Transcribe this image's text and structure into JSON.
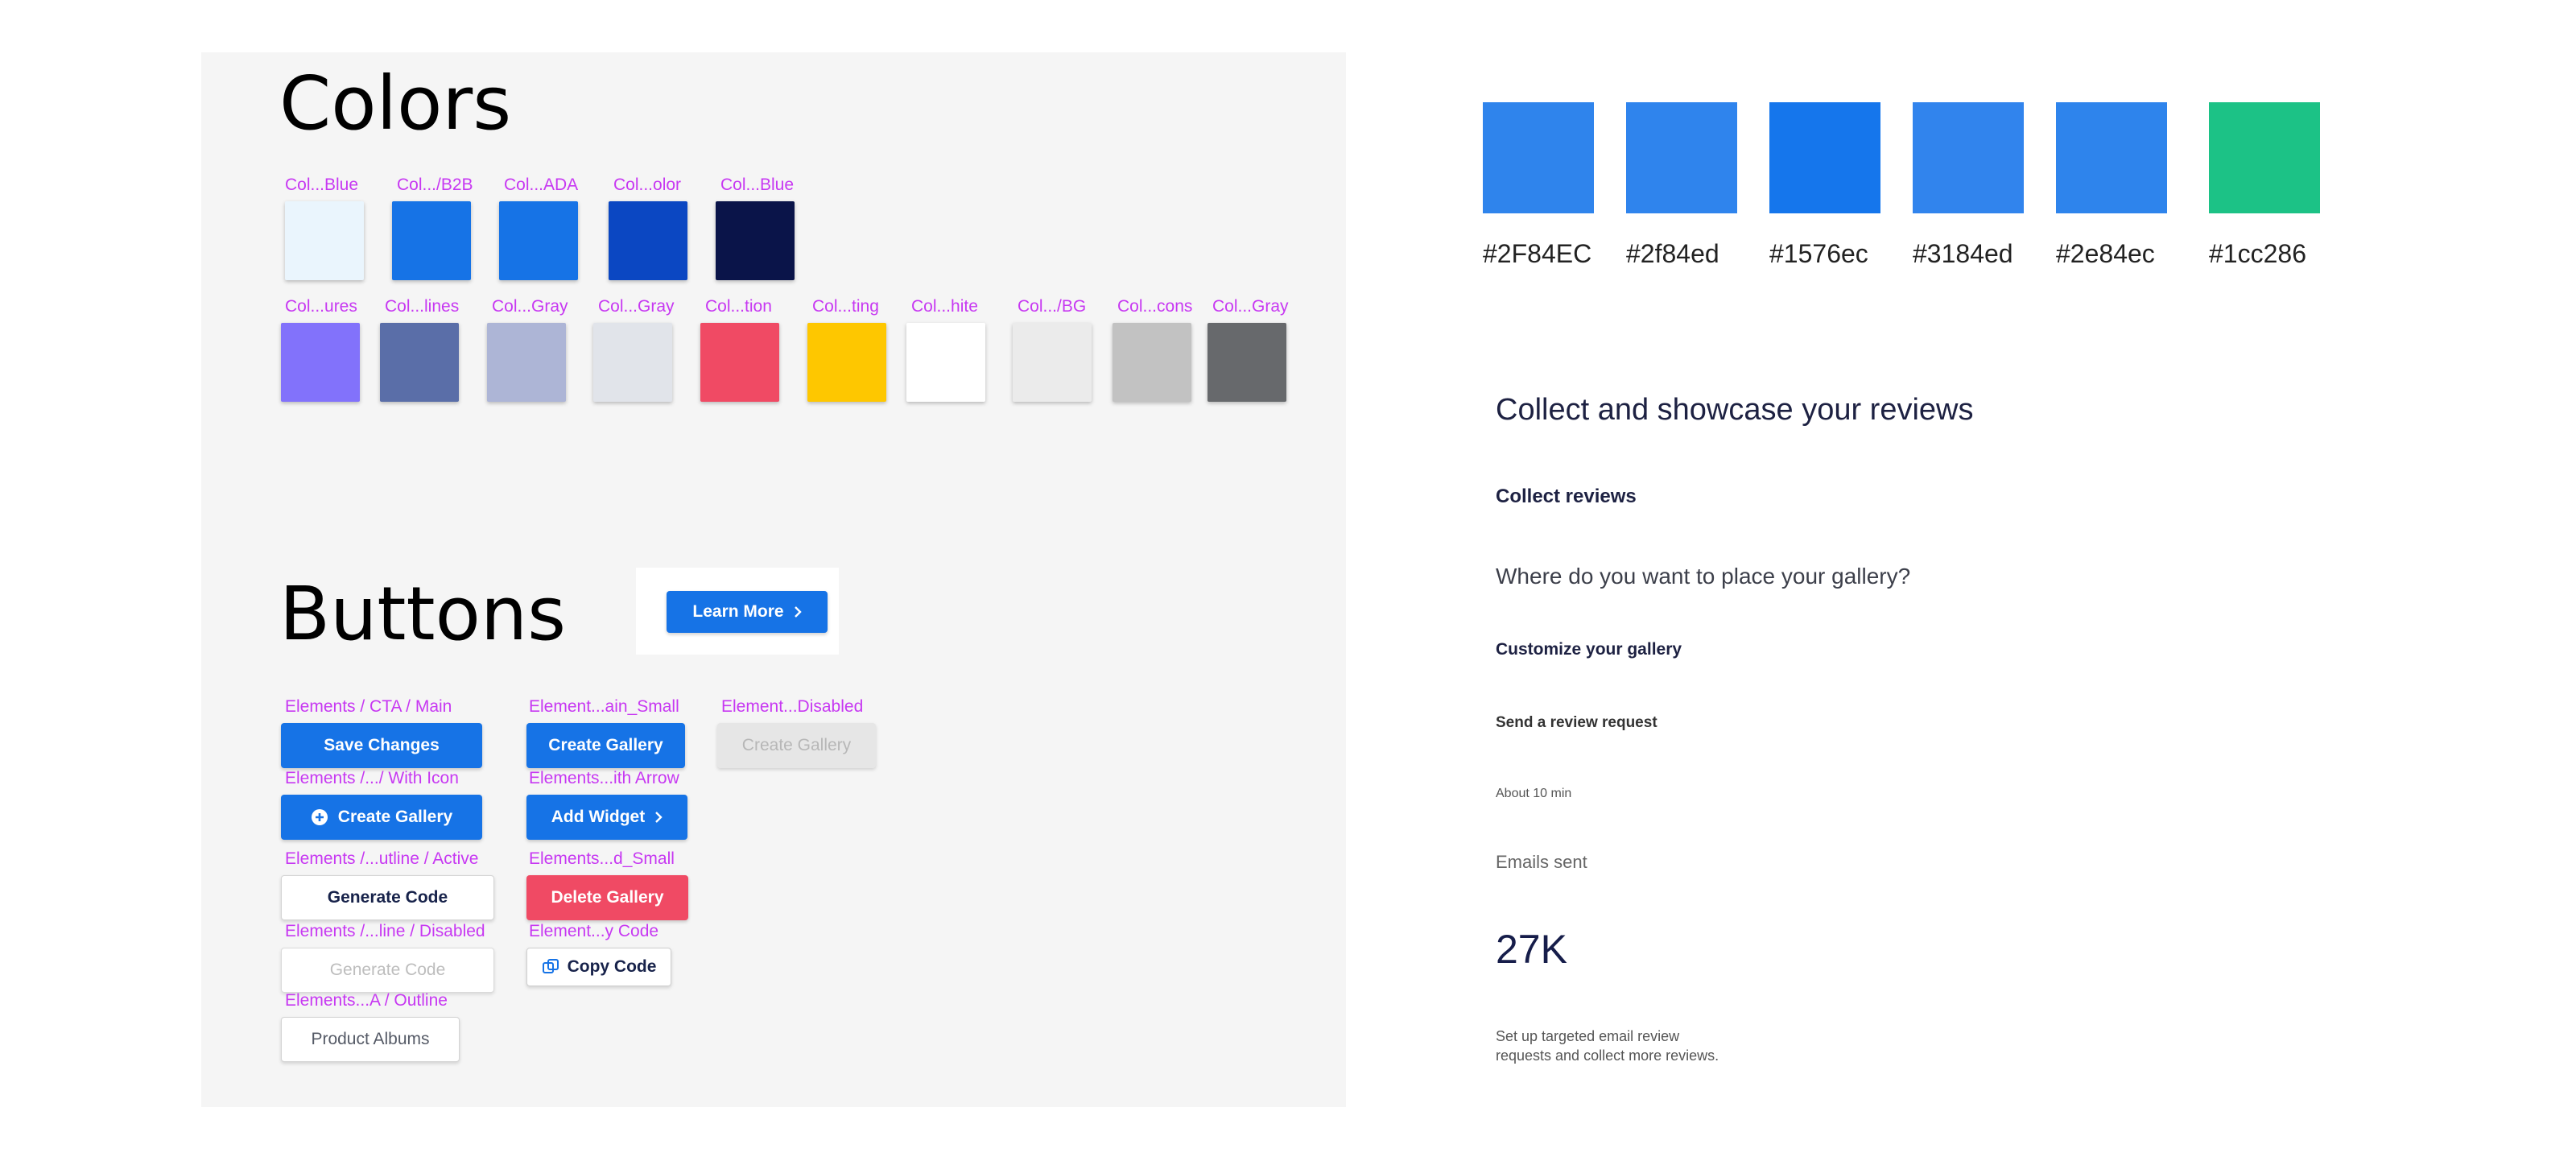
{
  "colors_section": {
    "title": "Colors",
    "row1": [
      {
        "label": "Col...Blue",
        "color": "#eaf5fd"
      },
      {
        "label": "Col.../B2B",
        "color": "#1673e6"
      },
      {
        "label": "Col...ADA",
        "color": "#1673e6"
      },
      {
        "label": "Col...olor",
        "color": "#0b47c2"
      },
      {
        "label": "Col...Blue",
        "color": "#0a1449"
      }
    ],
    "row2": [
      {
        "label": "Col...ures",
        "color": "#8272fb"
      },
      {
        "label": "Col...lines",
        "color": "#5a6ea8"
      },
      {
        "label": "Col...Gray",
        "color": "#adb5d6"
      },
      {
        "label": "Col...Gray",
        "color": "#e1e4ea"
      },
      {
        "label": "Col...tion",
        "color": "#f04a64"
      },
      {
        "label": "Col...ting",
        "color": "#fec700"
      },
      {
        "label": "Col...hite",
        "color": "#ffffff"
      },
      {
        "label": "Col.../BG",
        "color": "#ebebeb"
      },
      {
        "label": "Col...cons",
        "color": "#c2c2c2"
      },
      {
        "label": "Col...Gray",
        "color": "#67696c"
      }
    ]
  },
  "buttons_section": {
    "title": "Buttons",
    "learn_more": "Learn More",
    "labels": {
      "cta_main": "Elements / CTA / Main",
      "main_small": "Element...ain_Small",
      "disabled": "Element...Disabled",
      "with_icon": "Elements /.../ With Icon",
      "with_arrow": "Elements...ith Arrow",
      "outline_active": "Elements /...utline / Active",
      "red_small": "Elements...d_Small",
      "outline_disabled": "Elements /...line / Disabled",
      "copy_code": "Element...y Code",
      "a_outline": "Elements...A / Outline"
    },
    "buttons": {
      "save_changes": "Save Changes",
      "create_gallery_small": "Create Gallery",
      "create_gallery_disabled": "Create Gallery",
      "create_gallery_icon": "Create Gallery",
      "add_widget": "Add Widget",
      "generate_code": "Generate Code",
      "delete_gallery": "Delete Gallery",
      "generate_code_disabled": "Generate Code",
      "copy_code": "Copy Code",
      "product_albums": "Product Albums"
    }
  },
  "palette": [
    {
      "hex": "#2F84EC",
      "color": "#2f84ec"
    },
    {
      "hex": "#2f84ed",
      "color": "#2f84ed"
    },
    {
      "hex": "#1576ec",
      "color": "#1576ec"
    },
    {
      "hex": "#3184ed",
      "color": "#3184ed"
    },
    {
      "hex": "#2e84ec",
      "color": "#2e84ec"
    },
    {
      "hex": "#1cc286",
      "color": "#1cc286"
    }
  ],
  "typography": {
    "heading": "Collect and showcase your reviews",
    "subheading": "Collect reviews",
    "question": "Where do you want to place your gallery?",
    "customize": "Customize your gallery",
    "send_request": "Send a review request",
    "duration": "About 10 min",
    "emails_sent": "Emails sent",
    "emails_count": "27K",
    "description_line1": "Set up targeted email review",
    "description_line2": "requests and collect more reviews."
  }
}
